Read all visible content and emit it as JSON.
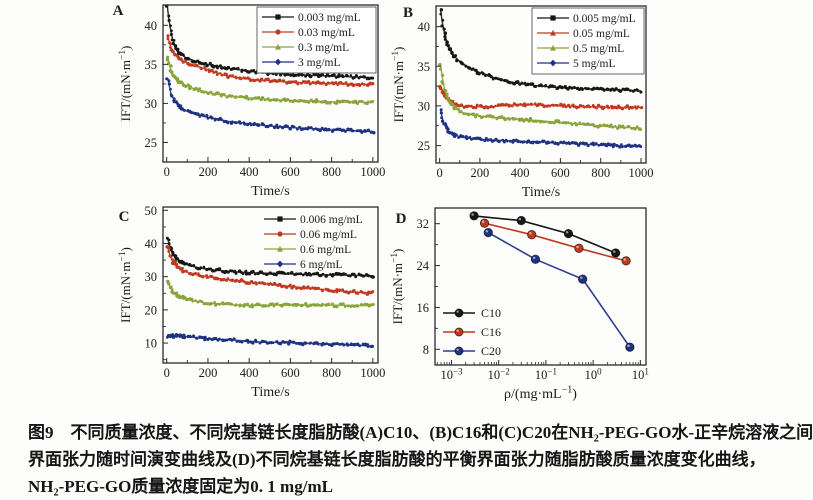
{
  "figure": {
    "caption_line1": "图9　不同质量浓度、不同烷基链长度脂肪酸(A)C10、(B)C16和(C)C20在NH₂-PEG-GO水-正辛烷溶液之间",
    "caption_line2": "界面张力随时间演变曲线及(D)不同烷基链长度脂肪酸的平衡界面张力随脂肪酸质量浓度变化曲线，",
    "caption_line3": "NH₂-PEG-GO质量浓度固定为0. 1 mg/mL"
  },
  "palette": {
    "black": "#161616",
    "red": "#c03a20",
    "green": "#8aa43c",
    "blue": "#1e3282",
    "frame": "#2b2b2b"
  },
  "chart_data": [
    {
      "panel_label": "A",
      "type": "noisy-line",
      "xlabel": "Time/s",
      "ylabel": "IFT/(mN·m⁻¹)",
      "xlim": [
        -18,
        1025
      ],
      "ylim": [
        22.5,
        42.6
      ],
      "xticks": [
        0,
        200,
        400,
        600,
        800,
        1000
      ],
      "xminor": [
        100,
        300,
        500,
        700,
        900
      ],
      "yticks": [
        25,
        30,
        35,
        40
      ],
      "yminor": [
        27.5,
        32.5,
        37.5
      ],
      "legend": {
        "box": true,
        "pos": "tr"
      },
      "series": [
        {
          "name": "0.003 mg/mL",
          "color": "#161616",
          "marker": "square",
          "anchors": [
            [
              4,
              42.3
            ],
            [
              8,
              41.2
            ],
            [
              15,
              40.0
            ],
            [
              25,
              38.6
            ],
            [
              40,
              37.2
            ],
            [
              60,
              36.5
            ],
            [
              90,
              35.9
            ],
            [
              130,
              35.5
            ],
            [
              200,
              35.0
            ],
            [
              300,
              34.5
            ],
            [
              400,
              34.1
            ],
            [
              500,
              33.9
            ],
            [
              600,
              33.7
            ],
            [
              700,
              33.6
            ],
            [
              800,
              33.5
            ],
            [
              900,
              33.4
            ],
            [
              1000,
              33.3
            ]
          ]
        },
        {
          "name": "0.03 mg/mL",
          "color": "#c03a20",
          "marker": "circle",
          "anchors": [
            [
              4,
              38.6
            ],
            [
              20,
              37.2
            ],
            [
              40,
              36.2
            ],
            [
              80,
              35.4
            ],
            [
              120,
              35.0
            ],
            [
              200,
              34.3
            ],
            [
              280,
              33.6
            ],
            [
              360,
              33.2
            ],
            [
              450,
              33.0
            ],
            [
              560,
              32.8
            ],
            [
              700,
              32.6
            ],
            [
              850,
              32.5
            ],
            [
              1000,
              32.4
            ]
          ]
        },
        {
          "name": "0.3 mg/mL",
          "color": "#8aa43c",
          "marker": "triangle",
          "anchors": [
            [
              4,
              36.0
            ],
            [
              20,
              34.3
            ],
            [
              40,
              33.3
            ],
            [
              80,
              32.4
            ],
            [
              120,
              32.0
            ],
            [
              200,
              31.4
            ],
            [
              300,
              30.9
            ],
            [
              400,
              30.7
            ],
            [
              500,
              30.5
            ],
            [
              600,
              30.4
            ],
            [
              700,
              30.3
            ],
            [
              800,
              30.2
            ],
            [
              900,
              30.2
            ],
            [
              1000,
              30.1
            ]
          ]
        },
        {
          "name": "3 mg/mL",
          "color": "#1e3282",
          "marker": "diamond",
          "anchors": [
            [
              4,
              33.3
            ],
            [
              20,
              31.3
            ],
            [
              40,
              30.2
            ],
            [
              80,
              29.2
            ],
            [
              120,
              28.8
            ],
            [
              200,
              28.2
            ],
            [
              300,
              27.7
            ],
            [
              400,
              27.4
            ],
            [
              500,
              27.1
            ],
            [
              600,
              26.9
            ],
            [
              700,
              26.8
            ],
            [
              800,
              26.6
            ],
            [
              900,
              26.5
            ],
            [
              1000,
              26.4
            ]
          ]
        }
      ]
    },
    {
      "panel_label": "B",
      "type": "noisy-line",
      "xlabel": "Time/s",
      "ylabel": "IFT/(mN·m⁻¹)",
      "xlim": [
        -18,
        1025
      ],
      "ylim": [
        22.8,
        42.6
      ],
      "xticks": [
        0,
        200,
        400,
        600,
        800,
        1000
      ],
      "xminor": [
        100,
        300,
        500,
        700,
        900
      ],
      "yticks": [
        25,
        30,
        35,
        40
      ],
      "yminor": [
        27.5,
        32.5,
        37.5
      ],
      "legend": {
        "box": true,
        "pos": "tr"
      },
      "series": [
        {
          "name": "0.005 mg/mL",
          "color": "#161616",
          "marker": "square",
          "anchors": [
            [
              4,
              42.3
            ],
            [
              12,
              40.8
            ],
            [
              25,
              39.0
            ],
            [
              45,
              37.4
            ],
            [
              70,
              36.3
            ],
            [
              110,
              35.4
            ],
            [
              170,
              34.5
            ],
            [
              240,
              33.8
            ],
            [
              320,
              33.2
            ],
            [
              400,
              32.8
            ],
            [
              500,
              32.5
            ],
            [
              600,
              32.3
            ],
            [
              700,
              32.2
            ],
            [
              800,
              32.1
            ],
            [
              900,
              32.0
            ],
            [
              1000,
              31.9
            ]
          ]
        },
        {
          "name": "0.05 mg/mL",
          "color": "#c03a20",
          "marker": "triangle",
          "anchors": [
            [
              4,
              32.5
            ],
            [
              20,
              31.5
            ],
            [
              40,
              30.8
            ],
            [
              70,
              30.3
            ],
            [
              100,
              30.0
            ],
            [
              150,
              29.9
            ],
            [
              250,
              29.9
            ],
            [
              350,
              30.1
            ],
            [
              420,
              30.2
            ],
            [
              500,
              30.1
            ],
            [
              600,
              30.0
            ],
            [
              750,
              29.9
            ],
            [
              900,
              29.8
            ],
            [
              1000,
              29.8
            ]
          ]
        },
        {
          "name": "0.5 mg/mL",
          "color": "#8aa43c",
          "marker": "triangle",
          "anchors": [
            [
              4,
              35.4
            ],
            [
              12,
              33.8
            ],
            [
              25,
              32.0
            ],
            [
              45,
              30.6
            ],
            [
              70,
              29.8
            ],
            [
              110,
              29.2
            ],
            [
              170,
              28.8
            ],
            [
              250,
              28.6
            ],
            [
              350,
              28.4
            ],
            [
              450,
              28.2
            ],
            [
              550,
              28.0
            ],
            [
              650,
              27.8
            ],
            [
              780,
              27.5
            ],
            [
              900,
              27.3
            ],
            [
              1000,
              27.2
            ]
          ]
        },
        {
          "name": "5 mg/mL",
          "color": "#1e3282",
          "marker": "diamond",
          "anchors": [
            [
              4,
              29.5
            ],
            [
              20,
              27.8
            ],
            [
              40,
              26.9
            ],
            [
              70,
              26.4
            ],
            [
              100,
              26.1
            ],
            [
              150,
              25.9
            ],
            [
              250,
              25.7
            ],
            [
              350,
              25.6
            ],
            [
              450,
              25.5
            ],
            [
              550,
              25.4
            ],
            [
              700,
              25.2
            ],
            [
              850,
              25.0
            ],
            [
              1000,
              24.9
            ]
          ]
        }
      ]
    },
    {
      "panel_label": "C",
      "type": "noisy-line",
      "xlabel": "Time/s",
      "ylabel": "IFT/(mN·m⁻¹)",
      "xlim": [
        -18,
        1025
      ],
      "ylim": [
        4,
        51
      ],
      "xticks": [
        0,
        200,
        400,
        600,
        800,
        1000
      ],
      "xminor": [
        100,
        300,
        500,
        700,
        900
      ],
      "yticks": [
        10,
        20,
        30,
        40,
        50
      ],
      "yminor": [
        5,
        15,
        25,
        35,
        45
      ],
      "legend": {
        "box": false,
        "pos": "tr"
      },
      "series": [
        {
          "name": "0.006 mg/mL",
          "color": "#161616",
          "marker": "square",
          "anchors": [
            [
              4,
              41.5
            ],
            [
              12,
              39.8
            ],
            [
              25,
              37.5
            ],
            [
              45,
              35.6
            ],
            [
              70,
              34.3
            ],
            [
              110,
              33.3
            ],
            [
              170,
              32.5
            ],
            [
              250,
              31.9
            ],
            [
              350,
              31.4
            ],
            [
              450,
              31.1
            ],
            [
              560,
              30.9
            ],
            [
              680,
              30.7
            ],
            [
              820,
              30.5
            ],
            [
              1000,
              30.3
            ]
          ]
        },
        {
          "name": "0.06 mg/mL",
          "color": "#c03a20",
          "marker": "circle",
          "anchors": [
            [
              4,
              39.0
            ],
            [
              12,
              37.2
            ],
            [
              25,
              35.0
            ],
            [
              45,
              33.3
            ],
            [
              75,
              31.9
            ],
            [
              115,
              31.0
            ],
            [
              175,
              30.2
            ],
            [
              250,
              29.5
            ],
            [
              350,
              28.7
            ],
            [
              450,
              28.0
            ],
            [
              550,
              27.4
            ],
            [
              650,
              26.8
            ],
            [
              750,
              26.2
            ],
            [
              860,
              25.6
            ],
            [
              940,
              25.3
            ],
            [
              1000,
              25.1
            ]
          ]
        },
        {
          "name": "0.6 mg/mL",
          "color": "#8aa43c",
          "marker": "triangle",
          "anchors": [
            [
              4,
              28.8
            ],
            [
              15,
              27.0
            ],
            [
              30,
              25.5
            ],
            [
              50,
              24.4
            ],
            [
              80,
              23.5
            ],
            [
              120,
              22.9
            ],
            [
              180,
              22.2
            ],
            [
              250,
              21.8
            ],
            [
              320,
              21.5
            ],
            [
              400,
              21.3
            ],
            [
              500,
              21.4
            ],
            [
              600,
              21.5
            ],
            [
              720,
              21.4
            ],
            [
              860,
              21.4
            ],
            [
              1000,
              21.3
            ]
          ]
        },
        {
          "name": "6 mg/mL",
          "color": "#1e3282",
          "marker": "diamond",
          "anchors": [
            [
              4,
              12.0
            ],
            [
              60,
              12.2
            ],
            [
              120,
              11.8
            ],
            [
              200,
              11.3
            ],
            [
              300,
              11.0
            ],
            [
              400,
              10.6
            ],
            [
              460,
              10.3
            ],
            [
              560,
              10.2
            ],
            [
              660,
              10.0
            ],
            [
              760,
              9.8
            ],
            [
              860,
              9.5
            ],
            [
              940,
              9.3
            ],
            [
              1000,
              9.0
            ]
          ]
        }
      ]
    },
    {
      "panel_label": "D",
      "type": "scatter-line",
      "xscale": "log",
      "xlabel": "ρ/(mg·mL⁻¹)",
      "ylabel": "IFT/(mN·m⁻¹)",
      "xlim": [
        -3.35,
        1.12
      ],
      "ylim": [
        5,
        35
      ],
      "xticks": [
        {
          "v": 0.001,
          "label": "10⁻³"
        },
        {
          "v": 0.01,
          "label": "10⁻²"
        },
        {
          "v": 0.1,
          "label": "10⁻¹"
        },
        {
          "v": 1,
          "label": "10⁰"
        },
        {
          "v": 10,
          "label": "10¹"
        }
      ],
      "yticks": [
        8,
        16,
        24,
        32
      ],
      "yminor": [
        12,
        20,
        28
      ],
      "legend": {
        "box": false,
        "pos": "bl"
      },
      "series": [
        {
          "name": "C10",
          "color": "#161616",
          "marker": "ball",
          "points": [
            [
              0.003,
              33.5
            ],
            [
              0.03,
              32.6
            ],
            [
              0.3,
              30.1
            ],
            [
              3,
              26.4
            ]
          ]
        },
        {
          "name": "C16",
          "color": "#c03a20",
          "marker": "ball",
          "points": [
            [
              0.005,
              32.1
            ],
            [
              0.05,
              29.9
            ],
            [
              0.5,
              27.3
            ],
            [
              5,
              24.9
            ]
          ]
        },
        {
          "name": "C20",
          "color": "#2b3f8c",
          "marker": "ball",
          "marker_fill": "#1e3282",
          "points": [
            [
              0.006,
              30.3
            ],
            [
              0.06,
              25.2
            ],
            [
              0.6,
              21.4
            ],
            [
              6,
              8.4
            ]
          ]
        }
      ]
    }
  ]
}
